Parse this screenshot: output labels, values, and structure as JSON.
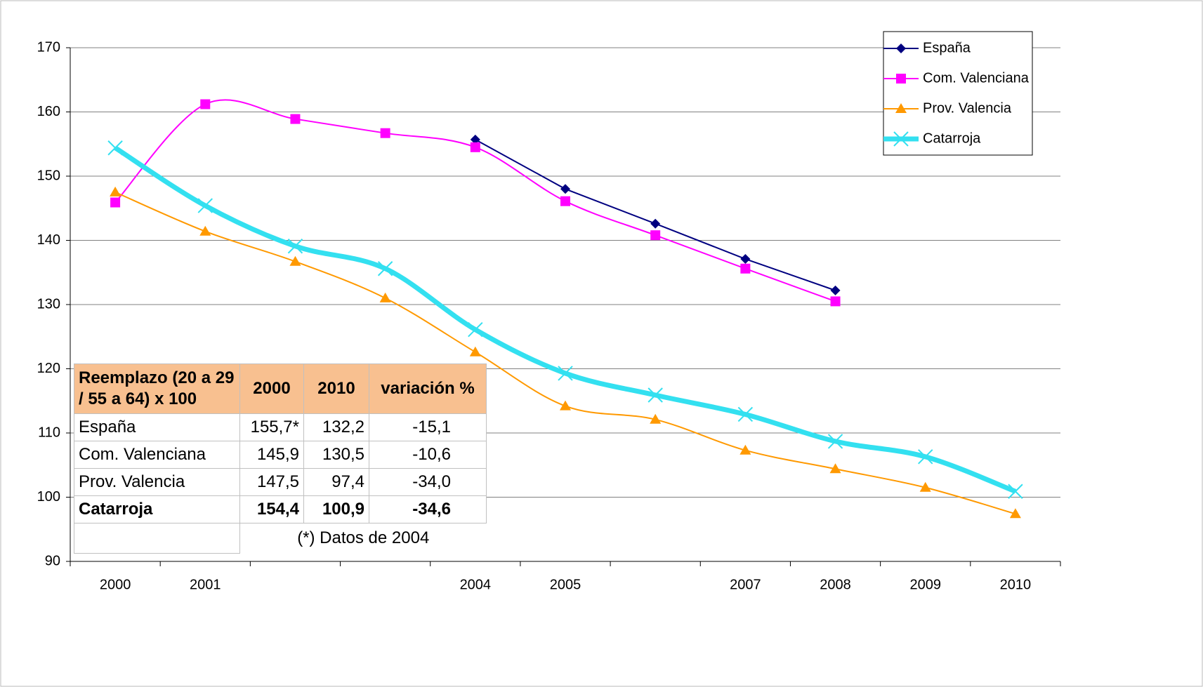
{
  "chart_data": {
    "type": "line",
    "categories": [
      "2000",
      "2001",
      null,
      null,
      "2004",
      "2005",
      null,
      "2007",
      "2008",
      "2009",
      "2010"
    ],
    "series": [
      {
        "name": "España",
        "color": "#000080",
        "marker": "diamond",
        "smooth": false,
        "width": 2,
        "values": [
          null,
          null,
          null,
          null,
          155.7,
          148.0,
          142.6,
          137.1,
          132.2,
          null,
          null
        ]
      },
      {
        "name": "Com. Valenciana",
        "color": "#ff00ff",
        "marker": "square",
        "smooth": true,
        "width": 2,
        "values": [
          145.9,
          161.2,
          158.9,
          156.7,
          154.5,
          146.1,
          140.8,
          135.6,
          130.5,
          null,
          null
        ]
      },
      {
        "name": "Prov. Valencia",
        "color": "#ff9900",
        "marker": "triangle",
        "smooth": true,
        "width": 2,
        "values": [
          147.5,
          141.4,
          136.7,
          131.0,
          122.6,
          114.2,
          112.1,
          107.3,
          104.4,
          101.5,
          97.4
        ]
      },
      {
        "name": "Catarroja",
        "color": "#33e0f0",
        "marker": "x",
        "smooth": true,
        "width": 7,
        "values": [
          154.4,
          145.4,
          139.1,
          135.6,
          126.1,
          119.3,
          115.9,
          112.9,
          108.7,
          106.3,
          100.9
        ]
      }
    ],
    "ylim": [
      90,
      170
    ],
    "yticks": [
      90,
      100,
      110,
      120,
      130,
      140,
      150,
      160,
      170
    ],
    "grid": true,
    "legend": "top-right",
    "table": {
      "header": [
        "Reemplazo (20 a 29 / 55 a 64) x 100",
        "2000",
        "2010",
        "variación %"
      ],
      "rows": [
        [
          "España",
          "155,7*",
          "132,2",
          "-15,1"
        ],
        [
          "Com. Valenciana",
          "145,9",
          "130,5",
          "-10,6"
        ],
        [
          "Prov. Valencia",
          "147,5",
          "97,4",
          "-34,0"
        ],
        [
          "Catarroja",
          "154,4",
          "100,9",
          "-34,6"
        ]
      ],
      "footnote": "(*) Datos de 2004"
    }
  }
}
